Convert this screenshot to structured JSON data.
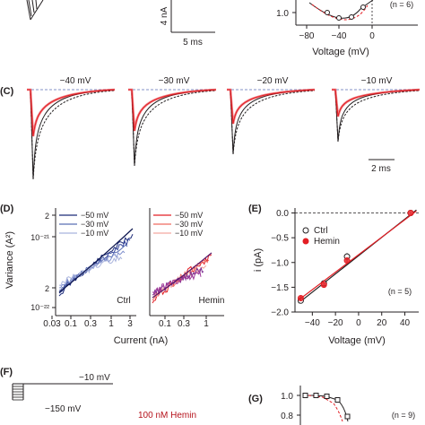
{
  "panels": {
    "top": {
      "scale_y": "4 nA",
      "scale_x": "5 ms",
      "n_label": "(n = 6)",
      "y_tick": "1.0",
      "x_ticks": [
        "−80",
        "−40",
        "0"
      ],
      "x_label": "Voltage (mV)"
    },
    "C": {
      "letter": "(C)",
      "voltages": [
        "−40 mV",
        "−30 mV",
        "−20 mV",
        "−10 mV"
      ],
      "scale_time": "2 ms"
    },
    "D": {
      "letter": "(D)",
      "y_label": "Variance (A²)",
      "y_ticks": [
        "2",
        "10⁻²¹",
        "2",
        "10⁻²²"
      ],
      "x_label": "Current (nA)",
      "left_x_ticks": [
        "0.03",
        "0.1",
        "0.3",
        "1",
        "3"
      ],
      "right_x_ticks": [
        "0.1",
        "0.3",
        "1"
      ],
      "left_legend": [
        "−50 mV",
        "−30 mV",
        "−10 mV"
      ],
      "right_legend": [
        "−50 mV",
        "−30 mV",
        "−10 mV"
      ],
      "left_condition": "Ctrl",
      "right_condition": "Hemin"
    },
    "E": {
      "letter": "(E)",
      "n_label": "(n = 5)",
      "legend_ctrl": "Ctrl",
      "legend_hemin": "Hemin"
    },
    "F": {
      "letter": "(F)",
      "v_hold": "−10 mV",
      "v_pre": "−150 mV",
      "drug": "100 nM Hemin"
    },
    "G": {
      "letter": "(G)",
      "y_ticks": [
        "1.0",
        "0.8"
      ],
      "n_label": "(n = 9)"
    }
  },
  "colors": {
    "ctrl": "#231f20",
    "hemin": "#e31e24",
    "blue_dark": "#1b2a78",
    "blue_mid": "#5b6fb5",
    "blue_light": "#a9b4dd",
    "red_dark": "#e31e24",
    "red_light": "#f4a9a0",
    "drug_label": "#b5121b"
  },
  "chart_data": {
    "type": "scatter",
    "xlabel": "Voltage (mV)",
    "ylabel": "i (pA)",
    "xticks": [
      -40,
      -20,
      0,
      20,
      40
    ],
    "yticks": [
      0.0,
      -0.5,
      -1.0,
      -1.5,
      -2.0
    ],
    "xlim": [
      -55,
      52
    ],
    "ylim": [
      -2.0,
      0.1
    ],
    "series": [
      {
        "name": "Ctrl",
        "x": [
          -50,
          -30,
          -10,
          45
        ],
        "y": [
          -1.77,
          -1.42,
          -0.88,
          0.0
        ],
        "err": [
          0.05,
          0.05,
          0.07,
          0.02
        ],
        "color": "#231f20",
        "fit": [
          [
            -52,
            -1.82
          ],
          [
            50,
            0.06
          ]
        ]
      },
      {
        "name": "Hemin",
        "x": [
          -50,
          -30,
          -10,
          45
        ],
        "y": [
          -1.72,
          -1.45,
          -0.96,
          0.0
        ],
        "err": [
          0.05,
          0.05,
          0.06,
          0.02
        ],
        "color": "#e31e24",
        "fit": [
          [
            -52,
            -1.76
          ],
          [
            50,
            0.04
          ]
        ]
      }
    ]
  }
}
